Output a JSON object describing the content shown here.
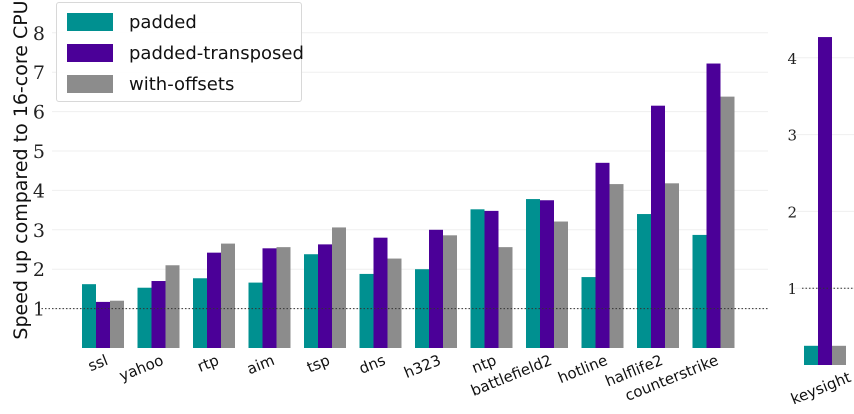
{
  "chart_data": [
    {
      "type": "bar",
      "ylabel": "Speed up compared to 16-core CPU",
      "ylim": [
        0,
        8.5
      ],
      "yticks": [
        1,
        2,
        3,
        4,
        5,
        6,
        7,
        8
      ],
      "reference_line": 1,
      "grid": true,
      "legend_position": "top-left",
      "categories": [
        "ssl",
        "yahoo",
        "rtp",
        "aim",
        "tsp",
        "dns",
        "h323",
        "ntp",
        "battlefield2",
        "hotline",
        "halflife2",
        "counterstrike"
      ],
      "series": [
        {
          "name": "padded",
          "color": "#009090",
          "values": [
            1.62,
            1.53,
            1.77,
            1.66,
            2.38,
            1.88,
            2.0,
            3.52,
            3.78,
            1.8,
            3.4,
            2.87
          ]
        },
        {
          "name": "padded-transposed",
          "color": "#4b0098",
          "values": [
            1.17,
            1.7,
            2.42,
            2.53,
            2.63,
            2.8,
            3.0,
            3.48,
            3.75,
            4.7,
            6.15,
            7.22
          ]
        },
        {
          "name": "with-offsets",
          "color": "#8c8c8c",
          "values": [
            1.2,
            2.1,
            2.65,
            2.56,
            3.06,
            2.27,
            2.86,
            2.56,
            3.21,
            4.16,
            4.18,
            6.38
          ]
        }
      ]
    },
    {
      "type": "bar",
      "ylim": [
        0,
        4.4
      ],
      "yticks": [
        1,
        2,
        3,
        4
      ],
      "reference_line": 1,
      "grid": true,
      "categories": [
        "keysight"
      ],
      "series": [
        {
          "name": "padded",
          "color": "#009090",
          "values": [
            0.25
          ]
        },
        {
          "name": "padded-transposed",
          "color": "#4b0098",
          "values": [
            4.27
          ]
        },
        {
          "name": "with-offsets",
          "color": "#8c8c8c",
          "values": [
            0.25
          ]
        }
      ]
    }
  ]
}
